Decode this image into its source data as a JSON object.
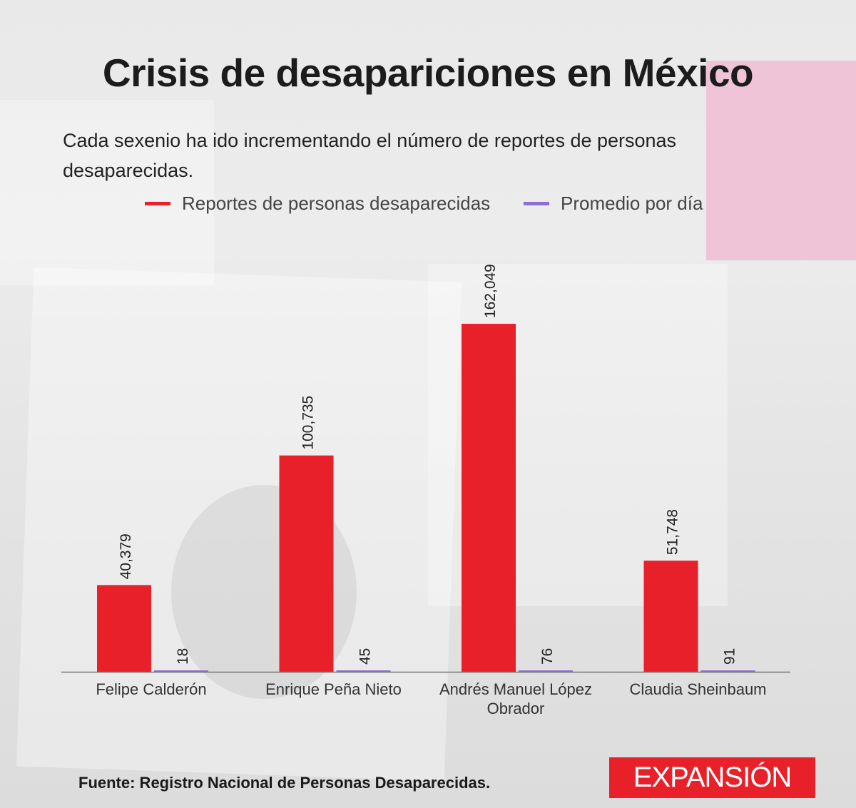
{
  "title": "Crisis de desapariciones en México",
  "subtitle": "Cada sexenio ha ido incrementando el número de reportes de personas desaparecidas.",
  "source": "Fuente: Registro Nacional de Personas Desaparecidas.",
  "logo": "EXPANSIÓN",
  "chart_data": {
    "type": "bar",
    "categories": [
      "Felipe Calderón",
      "Enrique Peña Nieto",
      "Andrés Manuel López Obrador",
      "Claudia Sheinbaum"
    ],
    "series": [
      {
        "name": "Reportes de personas desaparecidas",
        "values": [
          40379,
          100735,
          162049,
          51748
        ],
        "labels": [
          "40,379",
          "100,735",
          "162,049",
          "51,748"
        ],
        "color": "#e8202a"
      },
      {
        "name": "Promedio por día",
        "values": [
          18,
          45,
          76,
          91
        ],
        "labels": [
          "18",
          "45",
          "76",
          "91"
        ],
        "color": "#8b6fd6"
      }
    ],
    "ylim": [
      0,
      180000
    ],
    "grid": false,
    "legend": "top-center",
    "xlabel": "",
    "ylabel": ""
  }
}
